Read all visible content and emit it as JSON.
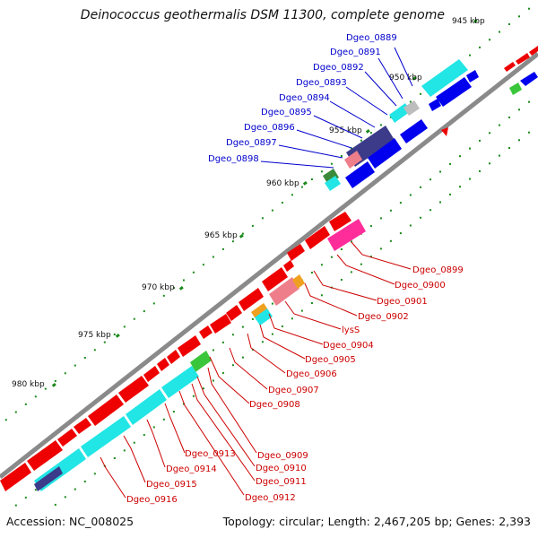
{
  "title": "Deinococcus geothermalis DSM 11300, complete genome",
  "footer": {
    "accession": "Accession: NC_008025",
    "summary": "Topology: circular; Length: 2,467,205 bp; Genes: 2,393"
  },
  "kbp_ticks": [
    "945 kbp",
    "950 kbp",
    "955 kbp",
    "960 kbp",
    "965 kbp",
    "970 kbp",
    "975 kbp",
    "980 kbp"
  ],
  "labels_top": [
    "Dgeo_0889",
    "Dgeo_0891",
    "Dgeo_0892",
    "Dgeo_0893",
    "Dgeo_0894",
    "Dgeo_0895",
    "Dgeo_0896",
    "Dgeo_0897",
    "Dgeo_0898"
  ],
  "labels_bottom": [
    "Dgeo_0899",
    "Dgeo_0900",
    "Dgeo_0901",
    "Dgeo_0902",
    "lysS",
    "Dgeo_0904",
    "Dgeo_0905",
    "Dgeo_0906",
    "Dgeo_0907",
    "Dgeo_0908",
    "Dgeo_0909",
    "Dgeo_0910",
    "Dgeo_0911",
    "Dgeo_0912",
    "Dgeo_0913",
    "Dgeo_0914",
    "Dgeo_0915",
    "Dgeo_0916"
  ],
  "colors": {
    "backbone": "#8a8a8a",
    "forward_cds": "#ee0000",
    "reverse_cds": "#0000ee",
    "tick_green": "#1a8a1a",
    "top_label": "#0000cc",
    "bottom_label": "#cc0000",
    "cyan": "#22e5e5"
  }
}
